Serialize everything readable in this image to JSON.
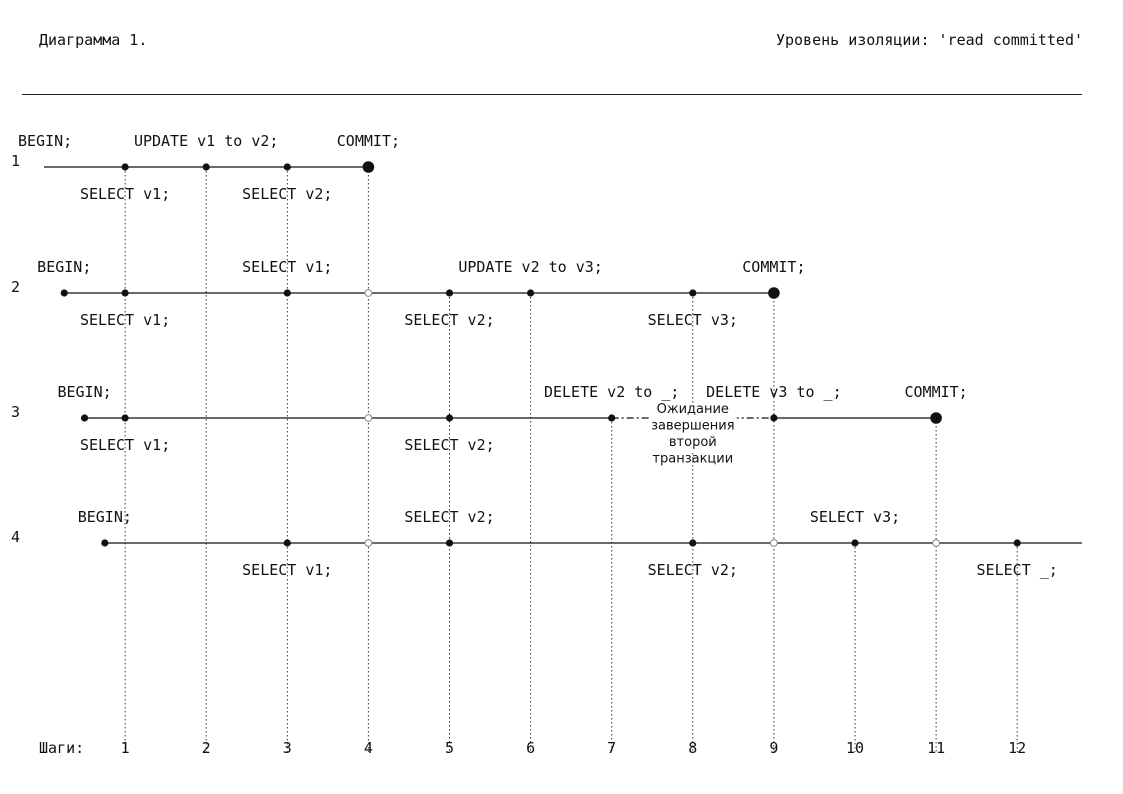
{
  "header": {
    "title": "Диаграмма 1.",
    "isolation": "Уровень изоляции: 'read committed'"
  },
  "diagram": {
    "steps_label": "Шаги:",
    "steps": [
      "1",
      "2",
      "3",
      "4",
      "5",
      "6",
      "7",
      "8",
      "9",
      "10",
      "11",
      "12"
    ],
    "transactions": [
      {
        "id": "1",
        "line_from": 0,
        "line_to": 4,
        "begin_at": 0,
        "events": [
          {
            "step": 0,
            "label": "BEGIN;",
            "pos": "above"
          },
          {
            "step": 1,
            "label": "SELECT v1;",
            "pos": "below",
            "marker": "dot"
          },
          {
            "step": 2,
            "label": "UPDATE v1 to v2;",
            "pos": "above",
            "marker": "dot"
          },
          {
            "step": 3,
            "label": "SELECT v2;",
            "pos": "below",
            "marker": "dot"
          },
          {
            "step": 4,
            "label": "COMMIT;",
            "pos": "above",
            "marker": "big"
          }
        ]
      },
      {
        "id": "2",
        "line_from": 0.25,
        "line_to": 9,
        "events": [
          {
            "step": 0.25,
            "label": "BEGIN;",
            "pos": "above",
            "marker": "dot"
          },
          {
            "step": 1,
            "label": "SELECT v1;",
            "pos": "below",
            "marker": "dot"
          },
          {
            "step": 3,
            "label": "SELECT v1;",
            "pos": "above",
            "marker": "dot"
          },
          {
            "step": 4,
            "label": "",
            "marker": "open"
          },
          {
            "step": 5,
            "label": "SELECT v2;",
            "pos": "below",
            "marker": "dot"
          },
          {
            "step": 6,
            "label": "UPDATE v2 to v3;",
            "pos": "above",
            "marker": "dot"
          },
          {
            "step": 8,
            "label": "SELECT v3;",
            "pos": "below",
            "marker": "dot"
          },
          {
            "step": 9,
            "label": "COMMIT;",
            "pos": "above",
            "marker": "big"
          }
        ]
      },
      {
        "id": "3",
        "line_from": 0.5,
        "line_to": 11,
        "wait_from": 7,
        "wait_to": 9,
        "wait_note": [
          "Ожидание",
          "завершения",
          "второй",
          "транзакции"
        ],
        "events": [
          {
            "step": 0.5,
            "label": "BEGIN;",
            "pos": "above",
            "marker": "dot"
          },
          {
            "step": 1,
            "label": "SELECT v1;",
            "pos": "below",
            "marker": "dot"
          },
          {
            "step": 4,
            "label": "",
            "marker": "open"
          },
          {
            "step": 5,
            "label": "SELECT v2;",
            "pos": "below",
            "marker": "dot"
          },
          {
            "step": 7,
            "label": "DELETE v2 to _;",
            "pos": "above",
            "marker": "dot"
          },
          {
            "step": 9,
            "label": "DELETE v3 to _;",
            "pos": "above",
            "marker": "dot"
          },
          {
            "step": 11,
            "label": "COMMIT;",
            "pos": "above",
            "marker": "big"
          }
        ]
      },
      {
        "id": "4",
        "line_from": 0.75,
        "line_to": 13,
        "events": [
          {
            "step": 0.75,
            "label": "BEGIN;",
            "pos": "above",
            "marker": "dot"
          },
          {
            "step": 3,
            "label": "SELECT v1;",
            "pos": "below",
            "marker": "dot"
          },
          {
            "step": 4,
            "label": "",
            "marker": "open"
          },
          {
            "step": 5,
            "label": "SELECT v2;",
            "pos": "above",
            "marker": "dot"
          },
          {
            "step": 8,
            "label": "SELECT v2;",
            "pos": "below",
            "marker": "dot"
          },
          {
            "step": 9,
            "label": "",
            "marker": "open"
          },
          {
            "step": 10,
            "label": "SELECT v3;",
            "pos": "above",
            "marker": "dot"
          },
          {
            "step": 11,
            "label": "",
            "marker": "open"
          },
          {
            "step": 12,
            "label": "SELECT _;",
            "pos": "below",
            "marker": "dot"
          }
        ]
      }
    ]
  }
}
